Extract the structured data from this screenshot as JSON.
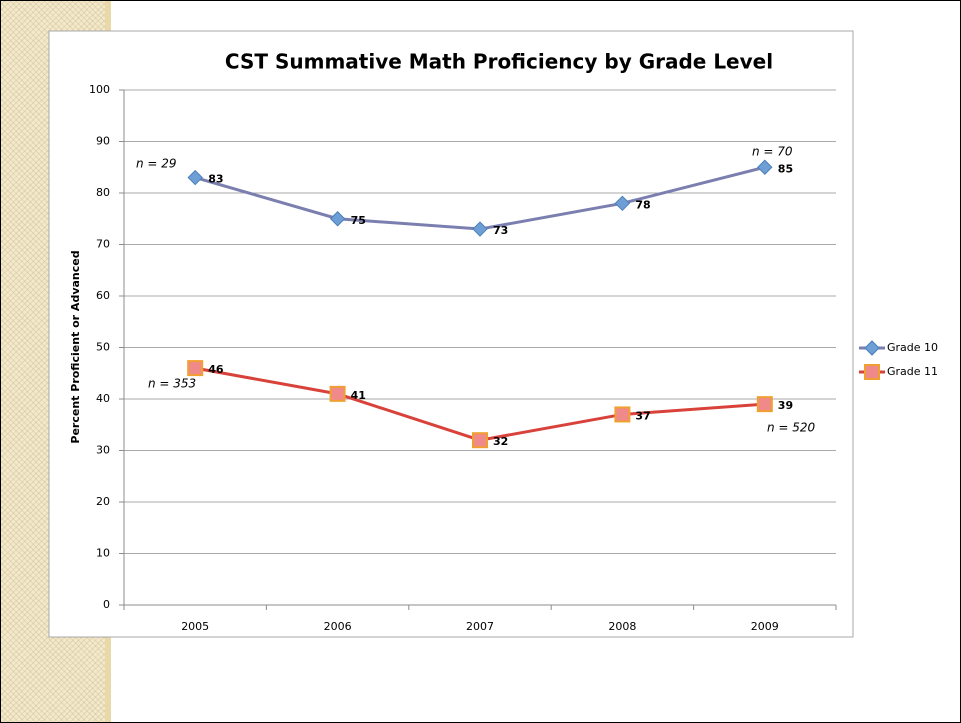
{
  "chart_data": {
    "type": "line",
    "title": "CST Summative Math Proficiency by Grade Level",
    "y_label": "Percent Proficient or Advanced",
    "categories": [
      "2005",
      "2006",
      "2007",
      "2008",
      "2009"
    ],
    "series": [
      {
        "name": "Grade 10",
        "color": "#7b7fb0",
        "marker_color": "#6d9fd6",
        "marker": "diamond",
        "values": [
          83,
          75,
          73,
          78,
          85
        ]
      },
      {
        "name": "Grade 11",
        "color": "#d8423a",
        "marker_color": "#f08a8a",
        "marker": "square",
        "values": [
          46,
          41,
          32,
          37,
          39
        ]
      }
    ],
    "annotations": [
      "n = 29",
      "n = 70",
      "n = 353",
      "n = 520"
    ],
    "ylim": [
      0,
      100
    ],
    "yticks": [
      0,
      10,
      20,
      30,
      40,
      50,
      60,
      70,
      80,
      90,
      100
    ],
    "grid": true,
    "legend": "right"
  }
}
